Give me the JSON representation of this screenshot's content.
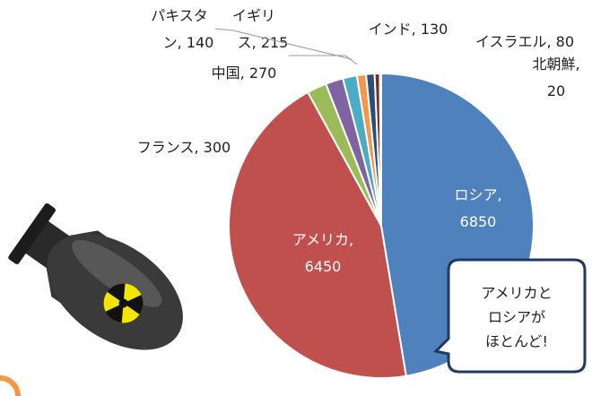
{
  "chart_data": {
    "type": "pie",
    "categories": [
      "ロシア",
      "アメリカ",
      "フランス",
      "中国",
      "イギリス",
      "パキスタン",
      "インド",
      "イスラエル",
      "北朝鮮"
    ],
    "values": [
      6850,
      6450,
      300,
      270,
      215,
      140,
      130,
      80,
      20
    ],
    "colors": [
      "#4f81bd",
      "#c0504d",
      "#9bbb59",
      "#8064a2",
      "#4bacc6",
      "#f79646",
      "#2c4d75",
      "#772c2a",
      "#5f7530"
    ],
    "annotation": [
      "アメリカと",
      "ロシアが",
      "ほとんど!"
    ]
  }
}
